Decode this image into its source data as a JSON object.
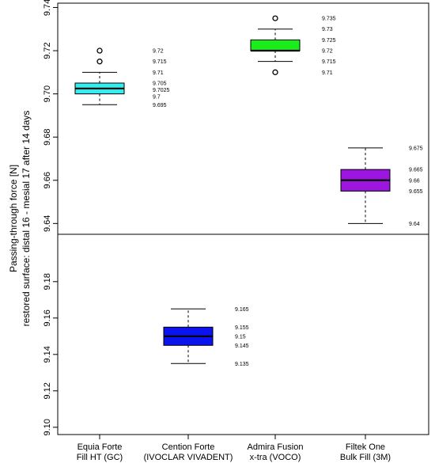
{
  "chart_data": {
    "type": "boxplot",
    "ylabel_lines": [
      "Passing-through force [N]",
      "restored surface: distal 16 - mesial 17 after 14 days"
    ],
    "categories": [
      {
        "line1": "Equia Forte",
        "line2": "Fill HT (GC)"
      },
      {
        "line1": "Cention Forte",
        "line2": "(IVOCLAR VIVADENT)"
      },
      {
        "line1": "Admira Fusion",
        "line2": "x-tra (VOCO)"
      },
      {
        "line1": "Filtek One",
        "line2": "Bulk Fill (3M)"
      }
    ],
    "panels": [
      {
        "name": "top",
        "ylim": [
          9.635,
          9.742
        ],
        "yticks": [
          "9.64",
          "9.66",
          "9.68",
          "9.70",
          "9.72",
          "9.74"
        ]
      },
      {
        "name": "bottom",
        "ylim": [
          9.096,
          9.206
        ],
        "yticks": [
          "9.10",
          "9.12",
          "9.14",
          "9.16",
          "9.18"
        ]
      }
    ],
    "boxes": [
      {
        "category": 0,
        "panel": "top",
        "color": "#33eeee",
        "whisker_low": 9.695,
        "q1": 9.7,
        "median": 9.7025,
        "q3": 9.705,
        "whisker_high": 9.71,
        "outliers": [
          9.715,
          9.72
        ],
        "labels": [
          "9.72",
          "9.715",
          "9.71",
          "9.705",
          "9.7025",
          "9.7",
          "9.695"
        ]
      },
      {
        "category": 1,
        "panel": "bottom",
        "color": "#0b14ee",
        "whisker_low": 9.135,
        "q1": 9.145,
        "median": 9.15,
        "q3": 9.155,
        "whisker_high": 9.165,
        "outliers": [],
        "labels": [
          "9.165",
          "9.155",
          "9.15",
          "9.145",
          "9.135"
        ]
      },
      {
        "category": 2,
        "panel": "top",
        "color": "#1aee1a",
        "whisker_low": 9.715,
        "q1": 9.72,
        "median": 9.72,
        "q3": 9.725,
        "whisker_high": 9.73,
        "outliers": [
          9.735,
          9.71
        ],
        "labels": [
          "9.735",
          "9.73",
          "9.725",
          "9.72",
          "9.715",
          "9.71"
        ]
      },
      {
        "category": 3,
        "panel": "top",
        "color": "#9c16e0",
        "whisker_low": 9.64,
        "q1": 9.655,
        "median": 9.66,
        "q3": 9.665,
        "whisker_high": 9.675,
        "outliers": [],
        "labels": [
          "9.675",
          "9.665",
          "9.66",
          "9.655",
          "9.64"
        ]
      }
    ]
  }
}
